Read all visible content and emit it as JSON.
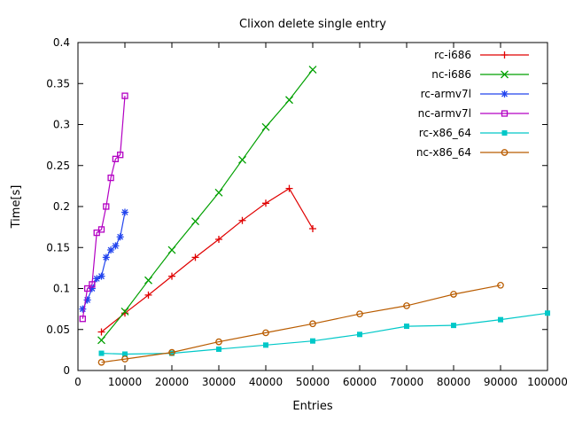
{
  "chart_data": {
    "type": "line",
    "title": "Clixon delete single entry",
    "xlabel": "Entries",
    "ylabel": "Time[s]",
    "xlim": [
      0,
      100000
    ],
    "ylim": [
      0,
      0.4
    ],
    "grid": false,
    "legend_position": "top-right-inside",
    "xticks": [
      0,
      10000,
      20000,
      30000,
      40000,
      50000,
      60000,
      70000,
      80000,
      90000,
      100000
    ],
    "xtick_labels": [
      "0",
      "10000",
      "20000",
      "30000",
      "40000",
      "50000",
      "60000",
      "70000",
      "80000",
      "90000",
      "100000"
    ],
    "yticks": [
      0,
      0.05,
      0.1,
      0.15,
      0.2,
      0.25,
      0.3,
      0.35,
      0.4
    ],
    "ytick_labels": [
      "0",
      "0.05",
      "0.1",
      "0.15",
      "0.2",
      "0.25",
      "0.3",
      "0.35",
      "0.4"
    ],
    "series": [
      {
        "name": "rc-i686",
        "color": "#e00000",
        "marker": "plus",
        "x": [
          5000,
          10000,
          15000,
          20000,
          25000,
          30000,
          35000,
          40000,
          45000,
          50000
        ],
        "y": [
          0.047,
          0.07,
          0.092,
          0.115,
          0.138,
          0.16,
          0.183,
          0.204,
          0.222,
          0.173
        ]
      },
      {
        "name": "nc-i686",
        "color": "#00a000",
        "marker": "cross",
        "x": [
          5000,
          10000,
          15000,
          20000,
          25000,
          30000,
          35000,
          40000,
          45000,
          50000
        ],
        "y": [
          0.037,
          0.072,
          0.11,
          0.147,
          0.182,
          0.217,
          0.257,
          0.297,
          0.33,
          0.367
        ]
      },
      {
        "name": "rc-armv7l",
        "color": "#2244ee",
        "marker": "asterisk",
        "x": [
          1000,
          2000,
          3000,
          4000,
          5000,
          6000,
          7000,
          8000,
          9000,
          10000
        ],
        "y": [
          0.075,
          0.086,
          0.1,
          0.112,
          0.115,
          0.138,
          0.147,
          0.152,
          0.163,
          0.193
        ]
      },
      {
        "name": "nc-armv7l",
        "color": "#b300c3",
        "marker": "square-open",
        "x": [
          1000,
          2000,
          3000,
          4000,
          5000,
          6000,
          7000,
          8000,
          9000,
          10000
        ],
        "y": [
          0.063,
          0.1,
          0.105,
          0.168,
          0.172,
          0.2,
          0.235,
          0.258,
          0.263,
          0.335
        ]
      },
      {
        "name": "rc-x86_64",
        "color": "#00c8c8",
        "marker": "square-filled",
        "x": [
          5000,
          10000,
          20000,
          30000,
          40000,
          50000,
          60000,
          70000,
          80000,
          90000,
          100000
        ],
        "y": [
          0.021,
          0.02,
          0.021,
          0.026,
          0.031,
          0.036,
          0.044,
          0.054,
          0.055,
          0.062,
          0.07
        ]
      },
      {
        "name": "nc-x86_64",
        "color": "#b95c00",
        "marker": "circle-open",
        "x": [
          5000,
          10000,
          20000,
          30000,
          40000,
          50000,
          60000,
          70000,
          80000,
          90000
        ],
        "y": [
          0.01,
          0.014,
          0.022,
          0.035,
          0.046,
          0.057,
          0.069,
          0.079,
          0.093,
          0.104
        ]
      }
    ]
  }
}
